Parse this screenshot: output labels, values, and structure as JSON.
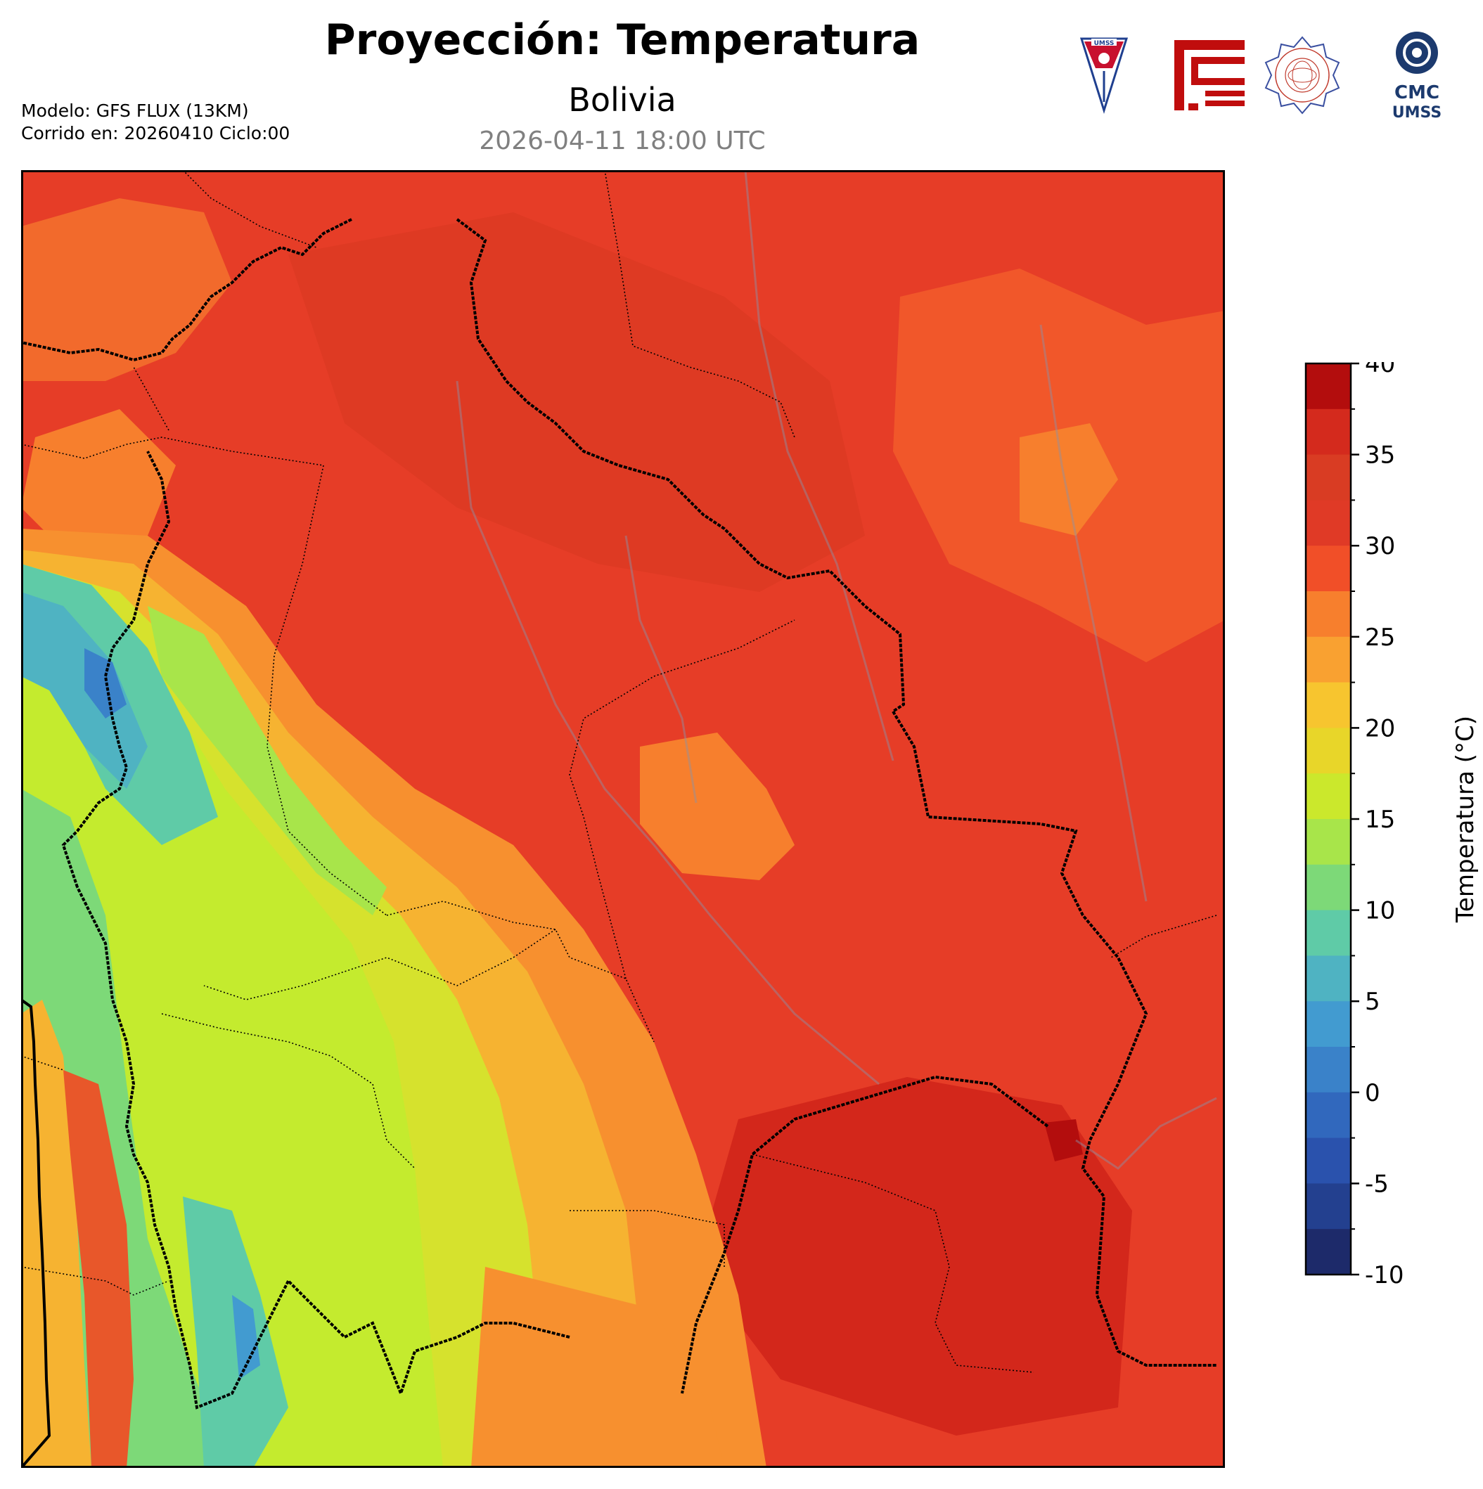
{
  "header": {
    "title": "Proyección: Temperatura",
    "subtitle": "Bolivia",
    "datetime": "2026-04-11 18:00 UTC",
    "model_line": "Modelo: GFS FLUX (13KM)",
    "run_line": "Corrido en: 20260410 Ciclo:00"
  },
  "logos": [
    {
      "name": "umss-shield-logo",
      "text": "UMSS"
    },
    {
      "name": "red-fcyt-logo"
    },
    {
      "name": "departamento-fisica-seal-logo"
    },
    {
      "name": "cmc-umss-logo",
      "line1": "CMC",
      "line2": "UMSS"
    }
  ],
  "colorbar": {
    "label": "Temperatura (°C)",
    "ticks": [
      "40",
      "35",
      "30",
      "25",
      "20",
      "15",
      "10",
      "5",
      "0",
      "-5",
      "-10"
    ],
    "min": -10,
    "max": 40,
    "colors": [
      "#b30d0d",
      "#d42a1d",
      "#d93c23",
      "#e03a26",
      "#f14f28",
      "#f77f2d",
      "#f9a131",
      "#f7c52f",
      "#e8d629",
      "#cbe82c",
      "#a8e54a",
      "#7dd978",
      "#5fcba7",
      "#4fb3c2",
      "#429bd0",
      "#3a82c9",
      "#3168bd",
      "#2a52ad",
      "#23408f",
      "#1d2a6a"
    ]
  }
}
